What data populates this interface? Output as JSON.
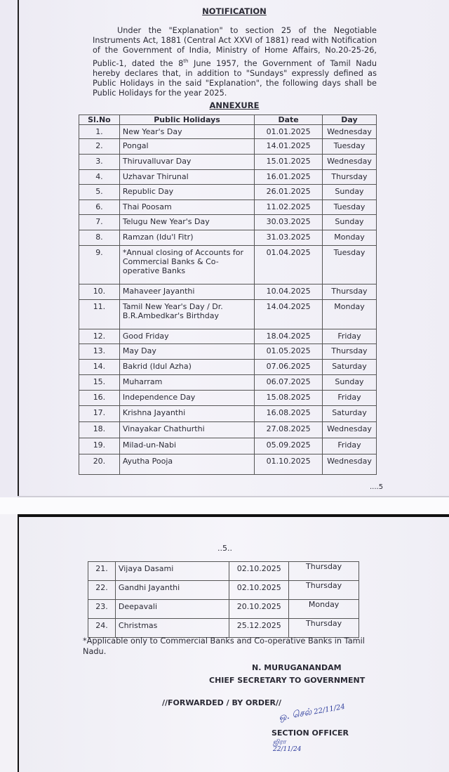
{
  "notification": {
    "title": "NOTIFICATION",
    "paragraph_pre": "Under the \"Explanation\" to section 25 of the Negotiable Instruments Act, 1881 (Central Act XXVI of 1881) read with Notification of the Government of India, Ministry of Home Affairs, No.20-25-26, Public-1, dated the 8",
    "paragraph_sup": "th",
    "paragraph_post": " June 1957, the Government of Tamil Nadu hereby declares that, in addition to \"Sundays\" expressly defined as Public Holidays in the said \"Explanation\", the following days shall be Public Holidays for the year 2025.",
    "annexure": "ANNEXURE"
  },
  "table": {
    "headers": [
      "Sl.No",
      "Public Holidays",
      "Date",
      "Day"
    ],
    "rows": [
      [
        "1.",
        "New Year's Day",
        "01.01.2025",
        "Wednesday"
      ],
      [
        "2.",
        "Pongal",
        "14.01.2025",
        "Tuesday"
      ],
      [
        "3.",
        "Thiruvalluvar Day",
        "15.01.2025",
        "Wednesday"
      ],
      [
        "4.",
        "Uzhavar Thirunal",
        "16.01.2025",
        "Thursday"
      ],
      [
        "5.",
        "Republic Day",
        "26.01.2025",
        "Sunday"
      ],
      [
        "6.",
        "Thai Poosam",
        "11.02.2025",
        "Tuesday"
      ],
      [
        "7.",
        "Telugu New Year's Day",
        "30.03.2025",
        "Sunday"
      ],
      [
        "8.",
        "Ramzan (Idu'l Fitr)",
        "31.03.2025",
        "Monday"
      ],
      [
        "9.",
        "*Annual closing of Accounts for Commercial Banks & Co-operative Banks",
        "01.04.2025",
        "Tuesday"
      ],
      [
        "10.",
        "Mahaveer Jayanthi",
        "10.04.2025",
        "Thursday"
      ],
      [
        "11.",
        "Tamil New Year's Day / Dr. B.R.Ambedkar's Birthday",
        "14.04.2025",
        "Monday"
      ],
      [
        "12.",
        "Good Friday",
        "18.04.2025",
        "Friday"
      ],
      [
        "13.",
        "May Day",
        "01.05.2025",
        "Thursday"
      ],
      [
        "14.",
        "Bakrid (Idul Azha)",
        "07.06.2025",
        "Saturday"
      ],
      [
        "15.",
        "Muharram",
        "06.07.2025",
        "Sunday"
      ],
      [
        "16.",
        "Independence Day",
        "15.08.2025",
        "Friday"
      ],
      [
        "17.",
        "Krishna Jayanthi",
        "16.08.2025",
        "Saturday"
      ],
      [
        "18.",
        "Vinayakar Chathurthi",
        "27.08.2025",
        "Wednesday"
      ],
      [
        "19.",
        "Milad-un-Nabi",
        "05.09.2025",
        "Friday"
      ],
      [
        "20.",
        "Ayutha Pooja",
        "01.10.2025",
        "Wednesday"
      ]
    ],
    "rows_page2": [
      [
        "21.",
        "Vijaya Dasami",
        "02.10.2025",
        "Thursday"
      ],
      [
        "22.",
        "Gandhi Jayanthi",
        "02.10.2025",
        "Thursday"
      ],
      [
        "23.",
        "Deepavali",
        "20.10.2025",
        "Monday"
      ],
      [
        "24.",
        "Christmas",
        "25.12.2025",
        "Thursday"
      ]
    ]
  },
  "page1_continue": "....5",
  "page2_number": "..5..",
  "footnote": "*Applicable only to Commercial Banks and Co-operative Banks in Tamil Nadu.",
  "signatory": {
    "name": "N. MURUGANANDAM",
    "designation": "CHIEF SECRETARY TO GOVERNMENT",
    "forwarded": "//FORWARDED / BY ORDER//",
    "officer": "SECTION OFFICER",
    "signature_text": "22/11/24"
  }
}
